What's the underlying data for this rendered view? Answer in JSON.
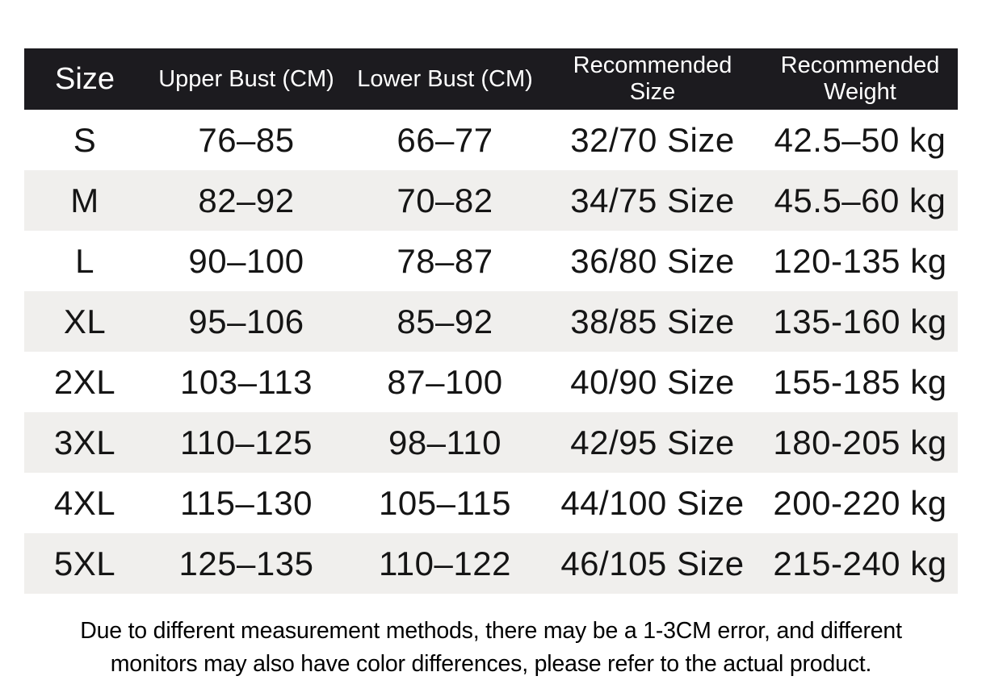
{
  "table": {
    "headers": [
      "Size",
      "Upper Bust (CM)",
      "Lower Bust (CM)",
      "Recommended\nSize",
      "Recommended\nWeight"
    ],
    "rows": [
      [
        "S",
        "76–85",
        "66–77",
        "32/70 Size",
        "42.5–50 kg"
      ],
      [
        "M",
        "82–92",
        "70–82",
        "34/75 Size",
        "45.5–60 kg"
      ],
      [
        "L",
        "90–100",
        "78–87",
        "36/80 Size",
        "120-135 kg"
      ],
      [
        "XL",
        "95–106",
        "85–92",
        "38/85 Size",
        "135-160 kg"
      ],
      [
        "2XL",
        "103–113",
        "87–100",
        "40/90 Size",
        "155-185 kg"
      ],
      [
        "3XL",
        "110–125",
        "98–110",
        "42/95 Size",
        "180-205 kg"
      ],
      [
        "4XL",
        "115–130",
        "105–115",
        "44/100 Size",
        "200-220 kg"
      ],
      [
        "5XL",
        "125–135",
        "110–122",
        "46/105 Size",
        "215-240 kg"
      ]
    ]
  },
  "footer": {
    "line1": "Due to different measurement methods, there may be a 1-3CM error, and different",
    "line2": "monitors may also have color differences, please refer to the actual product."
  },
  "colors": {
    "header_background": "#1c1b1f",
    "header_text": "#ffffff",
    "stripe_row": "#f0efed",
    "body_text": "#151515",
    "page_background": "#ffffff"
  }
}
